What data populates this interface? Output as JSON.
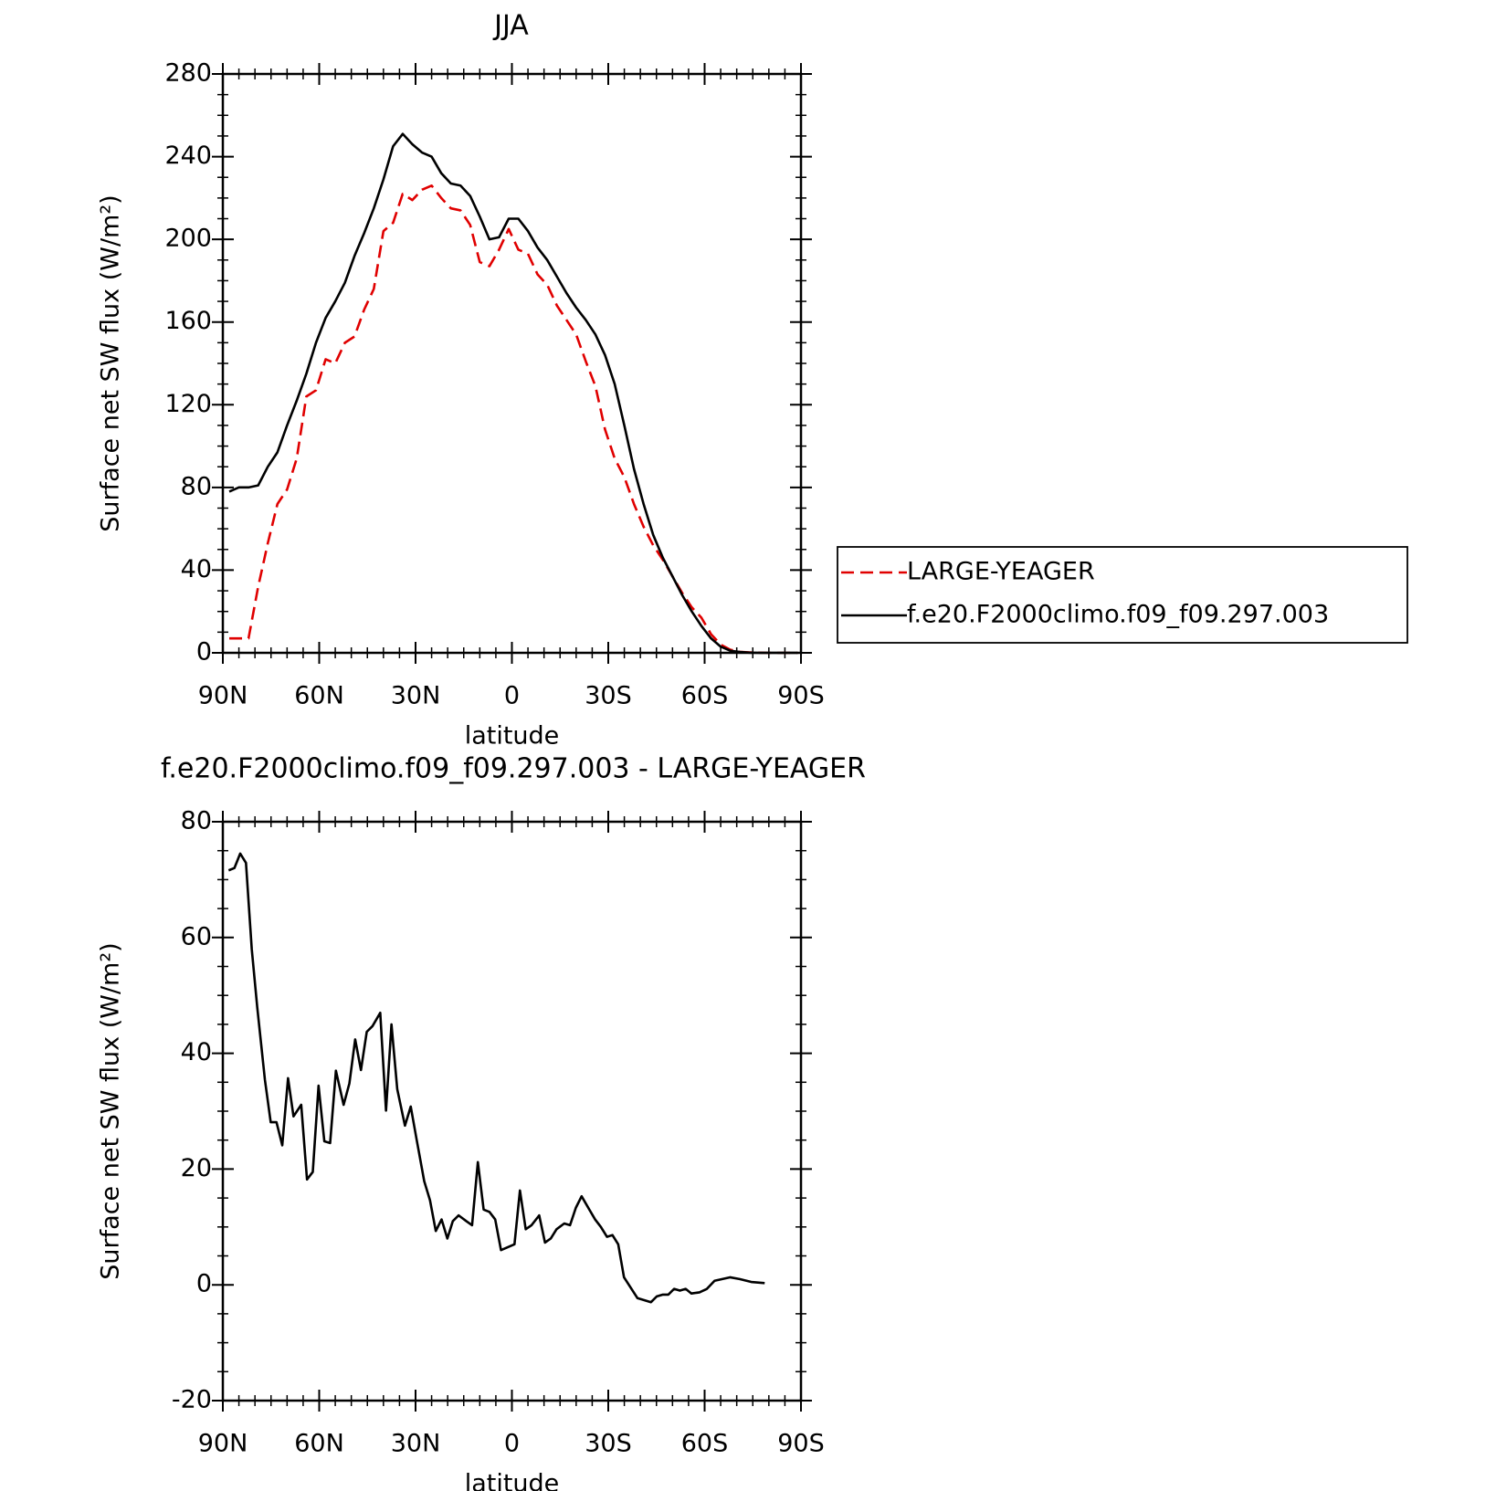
{
  "chart_data": [
    {
      "type": "line",
      "title": "JJA",
      "xlabel": "latitude",
      "ylabel": "Surface net SW flux (W/m²)",
      "x": [
        88,
        85,
        82,
        79,
        76,
        73,
        70,
        67,
        64,
        61,
        58,
        55,
        52,
        49,
        46,
        43,
        40,
        37,
        34,
        31,
        28,
        25,
        22,
        19,
        16,
        13,
        10,
        7,
        4,
        1,
        -2,
        -5,
        -8,
        -11,
        -14,
        -17,
        -20,
        -23,
        -26,
        -29,
        -32,
        -35,
        -38,
        -41,
        -44,
        -47,
        -50,
        -53,
        -56,
        -59,
        -62,
        -65,
        -68,
        -71,
        -74,
        -77,
        -80,
        -83,
        -86,
        -89
      ],
      "series": [
        {
          "name": "LARGE-YEAGER",
          "color": "#e00000",
          "linestyle": "dashed",
          "values": [
            7,
            7,
            7,
            32,
            53,
            72,
            79,
            94,
            124,
            127,
            142,
            140,
            150,
            153,
            166,
            176,
            204,
            208,
            222,
            219,
            224,
            226,
            220,
            215,
            214,
            207,
            189,
            187,
            195,
            205,
            195,
            193,
            183,
            178,
            168,
            161,
            154,
            141,
            129,
            108,
            94,
            85,
            72,
            61,
            52,
            45,
            37,
            29,
            22,
            17,
            9,
            4,
            1.5,
            0.5,
            0.2,
            0.1,
            0,
            0,
            0,
            0
          ]
        },
        {
          "name": "f.e20.F2000climo.f09_f09.297.003",
          "color": "#000000",
          "linestyle": "solid",
          "values": [
            78,
            80,
            80,
            81,
            90,
            97,
            110,
            122,
            135,
            150,
            162,
            170,
            179,
            192,
            203,
            215,
            229,
            245,
            251,
            246,
            242,
            240,
            232,
            227,
            226,
            221,
            211,
            200,
            201,
            210,
            210,
            204,
            196,
            190,
            182,
            174,
            167,
            161,
            154,
            144,
            130,
            110,
            89,
            72,
            57,
            46,
            37,
            28,
            20,
            13,
            7,
            3,
            1,
            0.4,
            0.1,
            0,
            0,
            0,
            0,
            0
          ]
        }
      ],
      "xlim": [
        90,
        -90
      ],
      "xticks": [
        {
          "value": 90,
          "label": "90N"
        },
        {
          "value": 60,
          "label": "60N"
        },
        {
          "value": 30,
          "label": "30N"
        },
        0,
        {
          "value": -30,
          "label": "30S"
        },
        {
          "value": -60,
          "label": "60S"
        },
        {
          "value": -90,
          "label": "90S"
        }
      ],
      "ylim": [
        0,
        280
      ],
      "yticks": [
        0,
        40,
        80,
        120,
        160,
        200,
        240,
        280
      ]
    },
    {
      "type": "line",
      "title": "f.e20.F2000climo.f09_f09.297.003 - LARGE-YEAGER",
      "xlabel": "latitude",
      "ylabel": "Surface net SW flux (W/m²)",
      "x": [
        88.2,
        86.4,
        84.6,
        82.8,
        81,
        79.3,
        76.9,
        75.1,
        73.3,
        71.5,
        69.7,
        68,
        65.6,
        63.8,
        62,
        60.2,
        58.4,
        56.6,
        54.8,
        52.4,
        50.6,
        48.8,
        47,
        45.2,
        43.4,
        41,
        39.2,
        37.5,
        35.7,
        33.3,
        31.5,
        29.7,
        27.3,
        25.5,
        23.7,
        21.9,
        20.1,
        18.4,
        16.6,
        14.2,
        12.4,
        10.6,
        8.8,
        7,
        5.2,
        3.4,
        -0.8,
        -2.5,
        -4.3,
        -6.1,
        -8.5,
        -10.3,
        -12.1,
        -13.9,
        -16.3,
        -18.1,
        -19.9,
        -21.7,
        -24.1,
        -25.9,
        -27.7,
        -29.6,
        -31.3,
        -33.1,
        -34.9,
        -39.1,
        -43.3,
        -45.1,
        -46.9,
        -48.7,
        -50.5,
        -52.3,
        -54.1,
        -55.9,
        -58.4,
        -60.7,
        -63.1,
        -65.5,
        -67.9,
        -70.9,
        -74.5,
        -78.7
      ],
      "series": [
        {
          "color": "#000000",
          "linestyle": "solid",
          "values": [
            71.6,
            72,
            74.5,
            72.9,
            58,
            48,
            35.4,
            28.1,
            28.1,
            24.1,
            35.7,
            29.1,
            31.1,
            18.2,
            19.5,
            34.4,
            24.8,
            24.5,
            37,
            31.1,
            34.8,
            42.4,
            37.1,
            43.7,
            44.7,
            47,
            30.1,
            45,
            33.8,
            27.5,
            30.8,
            25.2,
            17.9,
            14.6,
            9.3,
            11.3,
            8,
            11,
            12,
            11,
            10.3,
            21.2,
            13,
            12.6,
            11.3,
            6,
            7,
            16.3,
            9.6,
            10.3,
            12,
            7.3,
            8,
            9.6,
            10.6,
            10.3,
            13.3,
            15.3,
            13,
            11.3,
            10,
            8.3,
            8.6,
            7,
            1.3,
            -2.3,
            -3,
            -2,
            -1.7,
            -1.7,
            -0.7,
            -1,
            -0.7,
            -1.5,
            -1.3,
            -0.7,
            0.7,
            1,
            1.3,
            1,
            0.5,
            0.3
          ]
        }
      ],
      "xlim": [
        90,
        -90
      ],
      "xticks": [
        {
          "value": 90,
          "label": "90N"
        },
        {
          "value": 60,
          "label": "60N"
        },
        {
          "value": 30,
          "label": "30N"
        },
        0,
        {
          "value": -30,
          "label": "30S"
        },
        {
          "value": -60,
          "label": "60S"
        },
        {
          "value": -90,
          "label": "90S"
        }
      ],
      "ylim": [
        -20,
        80
      ],
      "yticks": [
        -20,
        0,
        20,
        40,
        60,
        80
      ]
    }
  ]
}
